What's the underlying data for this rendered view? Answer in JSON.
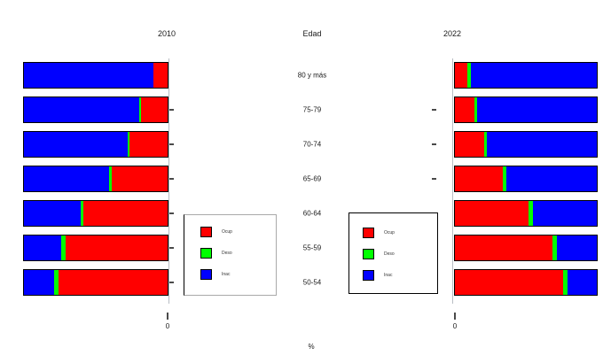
{
  "titles": {
    "left_panel": "2010",
    "center_axis": "Edad",
    "right_panel": "2022"
  },
  "axis": {
    "zero_left": "0",
    "zero_right": "0",
    "xlabel": "%"
  },
  "legend": {
    "items": [
      {
        "label": "Ocup",
        "color": "#ff0000"
      },
      {
        "label": "Deso",
        "color": "#00ff00"
      },
      {
        "label": "Inac",
        "color": "#0000ff"
      }
    ]
  },
  "chart_data": [
    {
      "type": "bar",
      "title": "2010",
      "orientation": "horizontal-stacked-100pct-mirrored-left",
      "categories": [
        "80 y más",
        "75-79",
        "70-74",
        "65-69",
        "60-64",
        "55-59",
        "50-54"
      ],
      "series": [
        {
          "name": "Ocup",
          "color": "#ff0000",
          "values": [
            10,
            18.5,
            26.5,
            39,
            58.5,
            71,
            76
          ]
        },
        {
          "name": "Deso",
          "color": "#00ff00",
          "values": [
            0,
            1.5,
            1,
            2,
            2,
            3,
            3
          ]
        },
        {
          "name": "Inac",
          "color": "#0000ff",
          "values": [
            90,
            80,
            72.5,
            59,
            39.5,
            26,
            21
          ]
        }
      ],
      "xlim": [
        0,
        100
      ],
      "xlabel": "%",
      "grid": false,
      "legend_position": "center-left-box"
    },
    {
      "type": "bar",
      "title": "2022",
      "orientation": "horizontal-stacked-100pct",
      "categories": [
        "80 y más",
        "75-79",
        "70-74",
        "65-69",
        "60-64",
        "55-59",
        "50-54"
      ],
      "series": [
        {
          "name": "Ocup",
          "color": "#ff0000",
          "values": [
            9,
            14,
            20.5,
            33.5,
            52,
            69,
            76
          ]
        },
        {
          "name": "Deso",
          "color": "#00ff00",
          "values": [
            2,
            1.5,
            2,
            2.5,
            3,
            3,
            3.5
          ]
        },
        {
          "name": "Inac",
          "color": "#0000ff",
          "values": [
            89,
            84.5,
            77.5,
            64,
            45,
            28,
            20.5
          ]
        }
      ],
      "xlim": [
        0,
        100
      ],
      "xlabel": "%",
      "grid": false,
      "legend_position": "center-right-box"
    }
  ]
}
